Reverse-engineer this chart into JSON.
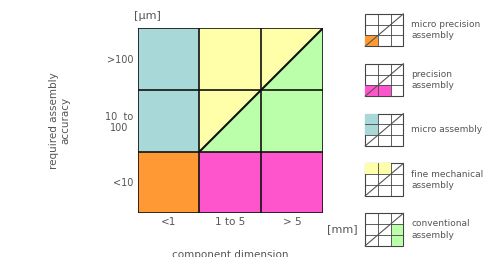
{
  "fig_width": 4.9,
  "fig_height": 2.57,
  "dpi": 100,
  "light_blue": "#A8D8D8",
  "yellow": "#FFFFAA",
  "light_green": "#BBFFAA",
  "orange": "#FF9933",
  "pink": "#FF55CC",
  "ylabel": "required assembly\naccuracy",
  "xlabel": "component dimension",
  "yunit": "[μm]",
  "xunit": "[mm]",
  "ytick_labels": [
    "<10",
    "10  to\n100",
    ">100"
  ],
  "xtick_labels": [
    "<1",
    "1 to 5",
    "> 5"
  ],
  "text_color": "#555555",
  "grid_color": "#111111",
  "diag_color": "#111111"
}
